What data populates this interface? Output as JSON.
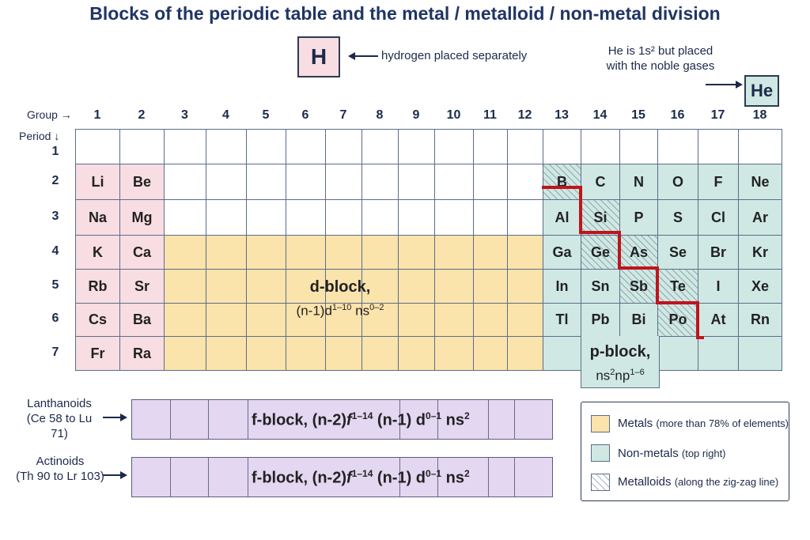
{
  "title": "Blocks of the periodic table and the metal / metalloid / non-metal division",
  "hydrogen": {
    "symbol": "H",
    "note": "hydrogen placed separately"
  },
  "helium": {
    "symbol": "He",
    "note_line1": "He is 1s² but placed",
    "note_line2": "with the noble gases"
  },
  "axis": {
    "group_label": "Group →",
    "period_label": "Period ↓"
  },
  "groups": [
    "1",
    "2",
    "3",
    "4",
    "5",
    "6",
    "7",
    "8",
    "9",
    "10",
    "11",
    "12",
    "13",
    "14",
    "15",
    "16",
    "17",
    "18"
  ],
  "periods": [
    "1",
    "2",
    "3",
    "4",
    "5",
    "6",
    "7"
  ],
  "elements": [
    {
      "s": "Li",
      "g": 1,
      "p": 2,
      "c": "s"
    },
    {
      "s": "Be",
      "g": 2,
      "p": 2,
      "c": "s"
    },
    {
      "s": "Na",
      "g": 1,
      "p": 3,
      "c": "s"
    },
    {
      "s": "Mg",
      "g": 2,
      "p": 3,
      "c": "s"
    },
    {
      "s": "K",
      "g": 1,
      "p": 4,
      "c": "s"
    },
    {
      "s": "Ca",
      "g": 2,
      "p": 4,
      "c": "s"
    },
    {
      "s": "Rb",
      "g": 1,
      "p": 5,
      "c": "s"
    },
    {
      "s": "Sr",
      "g": 2,
      "p": 5,
      "c": "s"
    },
    {
      "s": "Cs",
      "g": 1,
      "p": 6,
      "c": "s"
    },
    {
      "s": "Ba",
      "g": 2,
      "p": 6,
      "c": "s"
    },
    {
      "s": "Fr",
      "g": 1,
      "p": 7,
      "c": "s"
    },
    {
      "s": "Ra",
      "g": 2,
      "p": 7,
      "c": "s"
    },
    {
      "s": "B",
      "g": 13,
      "p": 2,
      "c": "metalloid"
    },
    {
      "s": "C",
      "g": 14,
      "p": 2,
      "c": "p"
    },
    {
      "s": "N",
      "g": 15,
      "p": 2,
      "c": "p"
    },
    {
      "s": "O",
      "g": 16,
      "p": 2,
      "c": "p"
    },
    {
      "s": "F",
      "g": 17,
      "p": 2,
      "c": "p"
    },
    {
      "s": "Ne",
      "g": 18,
      "p": 2,
      "c": "p"
    },
    {
      "s": "Al",
      "g": 13,
      "p": 3,
      "c": "p"
    },
    {
      "s": "Si",
      "g": 14,
      "p": 3,
      "c": "metalloid"
    },
    {
      "s": "P",
      "g": 15,
      "p": 3,
      "c": "p"
    },
    {
      "s": "S",
      "g": 16,
      "p": 3,
      "c": "p"
    },
    {
      "s": "Cl",
      "g": 17,
      "p": 3,
      "c": "p"
    },
    {
      "s": "Ar",
      "g": 18,
      "p": 3,
      "c": "p"
    },
    {
      "s": "Ga",
      "g": 13,
      "p": 4,
      "c": "p"
    },
    {
      "s": "Ge",
      "g": 14,
      "p": 4,
      "c": "metalloid"
    },
    {
      "s": "As",
      "g": 15,
      "p": 4,
      "c": "metalloid"
    },
    {
      "s": "Se",
      "g": 16,
      "p": 4,
      "c": "p"
    },
    {
      "s": "Br",
      "g": 17,
      "p": 4,
      "c": "p"
    },
    {
      "s": "Kr",
      "g": 18,
      "p": 4,
      "c": "p"
    },
    {
      "s": "In",
      "g": 13,
      "p": 5,
      "c": "p"
    },
    {
      "s": "Sn",
      "g": 14,
      "p": 5,
      "c": "p"
    },
    {
      "s": "Sb",
      "g": 15,
      "p": 5,
      "c": "metalloid"
    },
    {
      "s": "Te",
      "g": 16,
      "p": 5,
      "c": "metalloid"
    },
    {
      "s": "I",
      "g": 17,
      "p": 5,
      "c": "p"
    },
    {
      "s": "Xe",
      "g": 18,
      "p": 5,
      "c": "p"
    },
    {
      "s": "Tl",
      "g": 13,
      "p": 6,
      "c": "p"
    },
    {
      "s": "Pb",
      "g": 14,
      "p": 6,
      "c": "p"
    },
    {
      "s": "Bi",
      "g": 15,
      "p": 6,
      "c": "p"
    },
    {
      "s": "Po",
      "g": 16,
      "p": 6,
      "c": "metalloid"
    },
    {
      "s": "At",
      "g": 17,
      "p": 6,
      "c": "p"
    },
    {
      "s": "Rn",
      "g": 18,
      "p": 6,
      "c": "p"
    }
  ],
  "d_block": {
    "name": "d-block,",
    "config_prefix": "(n-1)d",
    "config_d_sup": "1–10",
    "config_mid": " ns",
    "config_s_sup": "0–2"
  },
  "p_block": {
    "name": "p-block,",
    "part1": "ns",
    "sup1": "2",
    "part2": "np",
    "sup2": "1–6"
  },
  "f_block": {
    "prefix": "f-block, (n-2)",
    "f": "f",
    "f_sup": "1–14",
    "mid": " (n-1) d",
    "d_sup": "0–1",
    "tail": " ns",
    "s_sup": "2"
  },
  "lanthanoids": {
    "line1": "Lanthanoids",
    "line2": "(Ce 58 to Lu 71)"
  },
  "actinoids": {
    "line1": "Actinoids",
    "line2": "(Th 90 to Lr 103)"
  },
  "legend": {
    "metals": {
      "name": "Metals",
      "detail": "(more than 78% of elements)"
    },
    "nonmetals": {
      "name": "Non-metals",
      "detail": "(top right)"
    },
    "metalloids": {
      "name": "Metalloids",
      "detail": "(along the zig-zag line)"
    }
  },
  "colors": {
    "s_block": "#f8dde3",
    "d_block": "#fbe3ac",
    "p_block": "#cfe8e3",
    "f_block": "#e3d7f1",
    "zigzag": "#c0141c",
    "border": "#2d3a55"
  }
}
